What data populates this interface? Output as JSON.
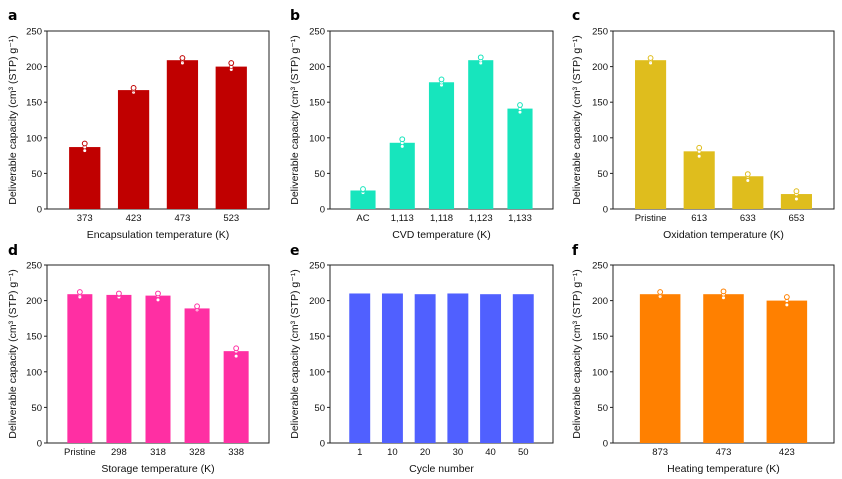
{
  "chart_data": [
    {
      "panel": "a",
      "type": "bar",
      "title": "",
      "xlabel": "Encapsulation temperature (K)",
      "ylabel": "Deliverable capacity (cm³ (STP) g⁻¹)",
      "ylim": [
        0,
        250
      ],
      "yticks": [
        0,
        50,
        100,
        150,
        200,
        250
      ],
      "categories": [
        "373",
        "423",
        "473",
        "523"
      ],
      "values": [
        87,
        167,
        209,
        200
      ],
      "replicates": [
        [
          82,
          87,
          92
        ],
        [
          164,
          167,
          170
        ],
        [
          205,
          209,
          212
        ],
        [
          196,
          200,
          205
        ]
      ],
      "color": "#c00000",
      "grid": false
    },
    {
      "panel": "b",
      "type": "bar",
      "title": "",
      "xlabel": "CVD temperature (K)",
      "ylabel": "Deliverable capacity (cm³ (STP) g⁻¹)",
      "ylim": [
        0,
        250
      ],
      "yticks": [
        0,
        50,
        100,
        150,
        200,
        250
      ],
      "categories": [
        "AC",
        "1,113",
        "1,118",
        "1,123",
        "1,133"
      ],
      "values": [
        26,
        93,
        178,
        209,
        141
      ],
      "replicates": [
        [
          23,
          26,
          28
        ],
        [
          88,
          93,
          98
        ],
        [
          174,
          178,
          182
        ],
        [
          205,
          209,
          213
        ],
        [
          136,
          141,
          146
        ]
      ],
      "color": "#17e5bd",
      "grid": false
    },
    {
      "panel": "c",
      "type": "bar",
      "title": "",
      "xlabel": "Oxidation temperature (K)",
      "ylabel": "Deliverable capacity (cm³ (STP) g⁻¹)",
      "ylim": [
        0,
        250
      ],
      "yticks": [
        0,
        50,
        100,
        150,
        200,
        250
      ],
      "categories": [
        "Pristine",
        "613",
        "633",
        "653"
      ],
      "values": [
        209,
        81,
        46,
        21
      ],
      "replicates": [
        [
          205,
          209,
          212
        ],
        [
          74,
          81,
          86
        ],
        [
          40,
          46,
          49
        ],
        [
          14,
          21,
          25
        ]
      ],
      "color": "#dfbd1d",
      "grid": false
    },
    {
      "panel": "d",
      "type": "bar",
      "title": "",
      "xlabel": "Storage temperature (K)",
      "ylabel": "Deliverable capacity (cm³ (STP) g⁻¹)",
      "ylim": [
        0,
        250
      ],
      "yticks": [
        0,
        50,
        100,
        150,
        200,
        250
      ],
      "categories": [
        "Pristine",
        "298",
        "318",
        "328",
        "338"
      ],
      "values": [
        209,
        208,
        207,
        189,
        129
      ],
      "replicates": [
        [
          205,
          209,
          212
        ],
        [
          205,
          208,
          210
        ],
        [
          201,
          207,
          210
        ],
        [
          187,
          189,
          192
        ],
        [
          122,
          129,
          133
        ]
      ],
      "color": "#ff2fa3",
      "grid": false
    },
    {
      "panel": "e",
      "type": "bar",
      "title": "",
      "xlabel": "Cycle number",
      "ylabel": "Deliverable capacity (cm³ (STP) g⁻¹)",
      "ylim": [
        0,
        250
      ],
      "yticks": [
        0,
        50,
        100,
        150,
        200,
        250
      ],
      "categories": [
        "1",
        "10",
        "20",
        "30",
        "40",
        "50"
      ],
      "values": [
        210,
        210,
        209,
        210,
        209,
        209
      ],
      "replicates": [],
      "color": "#5060ff",
      "grid": false
    },
    {
      "panel": "f",
      "type": "bar",
      "title": "",
      "xlabel": "Heating temperature (K)",
      "ylabel": "Deliverable capacity (cm³ (STP) g⁻¹)",
      "ylim": [
        0,
        250
      ],
      "yticks": [
        0,
        50,
        100,
        150,
        200,
        250
      ],
      "categories": [
        "873",
        "473",
        "423"
      ],
      "values": [
        209,
        209,
        200
      ],
      "replicates": [
        [
          206,
          209,
          212
        ],
        [
          204,
          209,
          213
        ],
        [
          194,
          200,
          205
        ]
      ],
      "color": "#ff8000",
      "grid": false
    }
  ]
}
